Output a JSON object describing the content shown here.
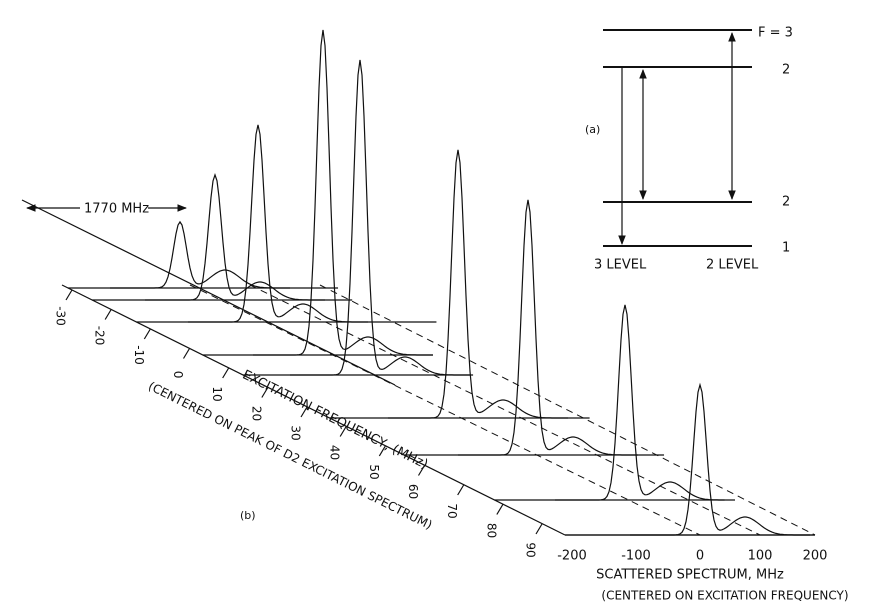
{
  "panel_a": {
    "label": "(a)",
    "levels": [
      "F = 3",
      "2",
      "2",
      "1"
    ],
    "columns": [
      "3 LEVEL",
      "2 LEVEL"
    ]
  },
  "panel_b": {
    "label": "(b)",
    "span": "1770 MHz",
    "excitation_ticks": [
      "-30",
      "-20",
      "-10",
      "0",
      "10",
      "20",
      "30",
      "40",
      "50",
      "60",
      "70",
      "80",
      "90"
    ],
    "excitation_title": "EXCITATION FREQUENCY, (MHz)",
    "excitation_subtitle": "(CENTERED ON PEAK OF D2 EXCITATION SPECTRUM)",
    "scattered_ticks": [
      "-200",
      "-100",
      "0",
      "100",
      "200"
    ],
    "scattered_title": "SCATTERED SPECTRUM, MHz",
    "scattered_subtitle": "(CENTERED ON EXCITATION FREQUENCY)"
  }
}
